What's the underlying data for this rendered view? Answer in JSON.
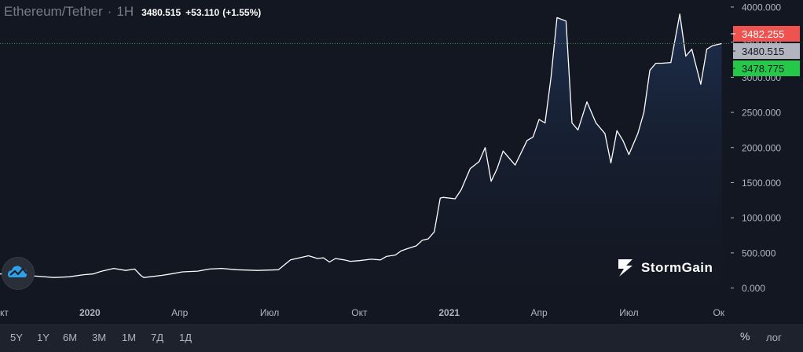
{
  "header": {
    "pair": "Ethereum/Tether",
    "separator": "·",
    "timeframe": "1H",
    "last": "3480.515",
    "change": "+53.110",
    "change_pct": "(+1.55%)"
  },
  "price_tags": [
    {
      "value": "3482.255",
      "color": "#ef5350",
      "text_color": "#ffffff",
      "y": 3482.255
    },
    {
      "value": "3480.515",
      "color": "#b2b5be",
      "text_color": "#131722",
      "y": 3480.515
    },
    {
      "value": "3478.775",
      "color": "#26c84a",
      "text_color": "#131722",
      "y": 3478.775
    }
  ],
  "colors": {
    "background": "#131722",
    "line": "#ffffff",
    "area_top": "#1e3050",
    "price_line": "#4a8a5a",
    "axis_text": "#b2b5be"
  },
  "toolbar": {
    "ranges": [
      "5Y",
      "1Y",
      "6M",
      "3M",
      "1M",
      "7Д",
      "1Д"
    ],
    "percent_label": "%",
    "log_label": "лог"
  },
  "brand": {
    "name": "StormGain",
    "icon": "stormgain-logo-icon"
  },
  "chart_data": {
    "type": "area",
    "title": "Ethereum/Tether",
    "ylim": [
      -150,
      4100
    ],
    "x_ticks": [
      {
        "label": "кт",
        "x": 0
      },
      {
        "label": "2020",
        "x": 3,
        "bold": true
      },
      {
        "label": "Апр",
        "x": 6
      },
      {
        "label": "Июл",
        "x": 9
      },
      {
        "label": "Окт",
        "x": 12
      },
      {
        "label": "2021",
        "x": 15,
        "bold": true
      },
      {
        "label": "Апр",
        "x": 18
      },
      {
        "label": "Июл",
        "x": 21
      },
      {
        "label": "Ок",
        "x": 24
      }
    ],
    "y_ticks": [
      {
        "label": "4000.000",
        "value": 4000
      },
      {
        "label": "3500.000",
        "value": 3500
      },
      {
        "label": "3000.000",
        "value": 3000
      },
      {
        "label": "2500.000",
        "value": 2500
      },
      {
        "label": "2000.000",
        "value": 2000
      },
      {
        "label": "1500.000",
        "value": 1500
      },
      {
        "label": "1000.000",
        "value": 1000
      },
      {
        "label": "500.000",
        "value": 500
      },
      {
        "label": "0.000",
        "value": 0
      }
    ],
    "series": [
      {
        "x": [
          0,
          0.4,
          0.6,
          1.2,
          1.8,
          2.3,
          2.8,
          3.1,
          3.4,
          3.8,
          4.2,
          4.5,
          4.7,
          4.8,
          5.0,
          5.4,
          5.7,
          6.1,
          6.6,
          7.0,
          7.4,
          7.9,
          8.6,
          9.3,
          9.7,
          10.0,
          10.3,
          10.6,
          10.8,
          11.0,
          11.2,
          11.5,
          11.7,
          12.0,
          12.4,
          12.7,
          12.9,
          13.2,
          13.4,
          13.6,
          13.9,
          14.1,
          14.3,
          14.5,
          14.7,
          14.8,
          15.2,
          15.4,
          15.7,
          16.0,
          16.2,
          16.4,
          16.6,
          16.8,
          17.2,
          17.6,
          17.8,
          18.0,
          18.2,
          18.4,
          18.6,
          18.9,
          19.1,
          19.3,
          19.6,
          19.9,
          20.2,
          20.4,
          20.6,
          20.8,
          21.0,
          21.3,
          21.5,
          21.7,
          21.9,
          22.1,
          22.4,
          22.7,
          22.9,
          23.1,
          23.4,
          23.6,
          23.8,
          24.1
        ],
        "values": [
          200,
          210,
          180,
          170,
          150,
          160,
          190,
          200,
          240,
          280,
          250,
          270,
          180,
          150,
          160,
          180,
          200,
          230,
          240,
          270,
          280,
          260,
          250,
          260,
          400,
          430,
          460,
          420,
          430,
          370,
          420,
          400,
          380,
          390,
          410,
          400,
          450,
          470,
          530,
          560,
          600,
          680,
          700,
          800,
          1280,
          1290,
          1270,
          1400,
          1700,
          1800,
          2000,
          1520,
          1700,
          1950,
          1750,
          2100,
          2150,
          2400,
          2350,
          3000,
          3850,
          3800,
          2350,
          2250,
          2650,
          2350,
          2200,
          1780,
          2240,
          2100,
          1900,
          2200,
          2500,
          3100,
          3200,
          3200,
          3210,
          3900,
          3300,
          3400,
          2900,
          3400,
          3450,
          3480
        ]
      }
    ]
  }
}
